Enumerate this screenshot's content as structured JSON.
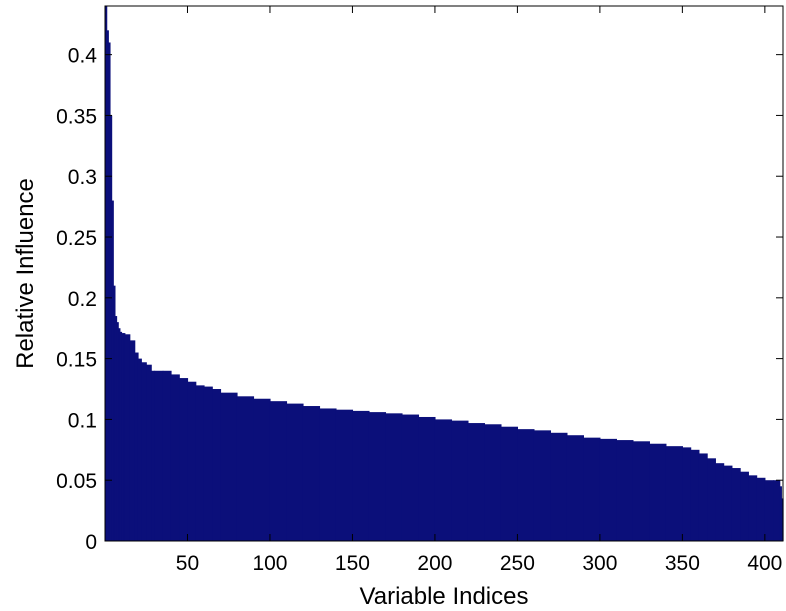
{
  "chart_data": {
    "type": "bar",
    "title": "",
    "xlabel": "Variable Indices",
    "ylabel": "Relative Influence",
    "xlim": [
      0,
      411
    ],
    "ylim": [
      0,
      0.44
    ],
    "x_ticks": [
      50,
      100,
      150,
      200,
      250,
      300,
      350,
      400
    ],
    "y_ticks": [
      0,
      0.05,
      0.1,
      0.15,
      0.2,
      0.25,
      0.3,
      0.35,
      0.4
    ],
    "y_tick_labels": [
      "0",
      "0.05",
      "0.1",
      "0.15",
      "0.2",
      "0.25",
      "0.3",
      "0.35",
      "0.4"
    ],
    "grid": false,
    "bar_color": "#0b0f7a",
    "series": [
      {
        "x": [
          1,
          2,
          3,
          4,
          5,
          6,
          7,
          8,
          9,
          10,
          11,
          12,
          15,
          18,
          20,
          22,
          25,
          28,
          30,
          35,
          40,
          45,
          50,
          55,
          60,
          65,
          70,
          80,
          90,
          100,
          110,
          120,
          130,
          140,
          150,
          160,
          170,
          180,
          190,
          200,
          210,
          220,
          230,
          240,
          250,
          260,
          270,
          280,
          290,
          300,
          310,
          320,
          330,
          340,
          350,
          355,
          360,
          365,
          370,
          375,
          380,
          385,
          390,
          395,
          400,
          405,
          409,
          410,
          411
        ],
        "values": [
          0.44,
          0.42,
          0.41,
          0.35,
          0.28,
          0.21,
          0.185,
          0.18,
          0.175,
          0.172,
          0.171,
          0.171,
          0.17,
          0.165,
          0.155,
          0.15,
          0.147,
          0.145,
          0.14,
          0.14,
          0.14,
          0.137,
          0.134,
          0.131,
          0.128,
          0.127,
          0.125,
          0.122,
          0.119,
          0.117,
          0.115,
          0.113,
          0.111,
          0.109,
          0.108,
          0.107,
          0.106,
          0.105,
          0.104,
          0.102,
          0.1,
          0.099,
          0.097,
          0.096,
          0.094,
          0.092,
          0.091,
          0.089,
          0.087,
          0.085,
          0.084,
          0.083,
          0.082,
          0.08,
          0.078,
          0.077,
          0.075,
          0.072,
          0.068,
          0.064,
          0.062,
          0.06,
          0.057,
          0.054,
          0.052,
          0.05,
          0.05,
          0.045,
          0.035
        ]
      }
    ]
  }
}
